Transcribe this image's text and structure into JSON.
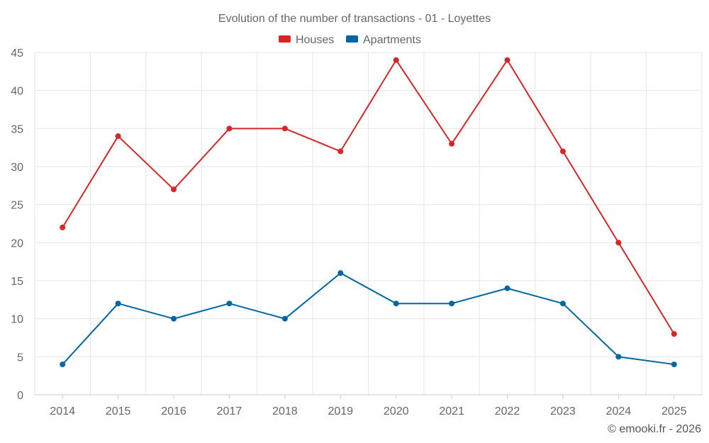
{
  "chart_data": {
    "type": "line",
    "title": "Evolution of the number of transactions - 01 - Loyettes",
    "xlabel": "",
    "ylabel": "",
    "categories": [
      "2014",
      "2015",
      "2016",
      "2017",
      "2018",
      "2019",
      "2020",
      "2021",
      "2022",
      "2023",
      "2024",
      "2025"
    ],
    "ylim": [
      0,
      45
    ],
    "yticks": [
      0,
      5,
      10,
      15,
      20,
      25,
      30,
      35,
      40,
      45
    ],
    "grid": true,
    "legend_position": "top-center",
    "series": [
      {
        "name": "Houses",
        "color": "#d62728",
        "values": [
          22,
          34,
          27,
          35,
          35,
          32,
          44,
          33,
          44,
          32,
          20,
          8
        ]
      },
      {
        "name": "Apartments",
        "color": "#0066a1",
        "values": [
          4,
          12,
          10,
          12,
          10,
          16,
          12,
          12,
          14,
          12,
          5,
          4
        ]
      }
    ]
  },
  "footer": {
    "credit": "© emooki.fr - 2026"
  }
}
